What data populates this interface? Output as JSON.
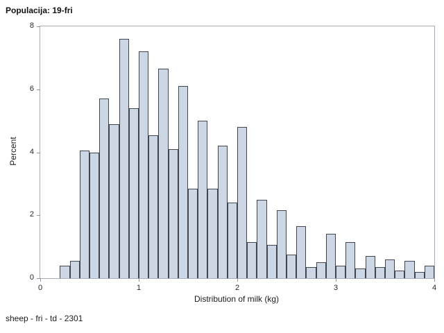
{
  "page": {
    "title": "Populacija: 19-fri",
    "footnote": "sheep - fri - td - 2301"
  },
  "chart_data": {
    "type": "bar",
    "subtype": "histogram",
    "title": "Populacija: 19-fri",
    "xlabel": "Distribution of milk (kg)",
    "ylabel": "Percent",
    "footnote": "sheep - fri - td - 2301",
    "bins": {
      "start": 0.2,
      "width": 0.1,
      "count": 38
    },
    "x": [
      0.2,
      0.3,
      0.4,
      0.5,
      0.6,
      0.7,
      0.8,
      0.9,
      1.0,
      1.1,
      1.2,
      1.3,
      1.4,
      1.5,
      1.6,
      1.7,
      1.8,
      1.9,
      2.0,
      2.1,
      2.2,
      2.3,
      2.4,
      2.5,
      2.6,
      2.7,
      2.8,
      2.9,
      3.0,
      3.1,
      3.2,
      3.3,
      3.4,
      3.5,
      3.6,
      3.7,
      3.8,
      3.9
    ],
    "values": [
      0.4,
      0.55,
      4.05,
      4.0,
      5.7,
      4.9,
      7.6,
      5.4,
      7.2,
      4.55,
      6.65,
      4.1,
      6.1,
      2.85,
      5.0,
      2.85,
      4.2,
      2.4,
      4.8,
      1.15,
      2.5,
      1.05,
      2.15,
      0.75,
      1.65,
      0.35,
      0.5,
      1.4,
      0.4,
      1.15,
      0.3,
      0.7,
      0.35,
      0.6,
      0.25,
      0.55,
      0.2,
      0.4
    ],
    "xlim": [
      0,
      4
    ],
    "ylim": [
      0,
      8
    ],
    "xticks": [
      0,
      1,
      2,
      3,
      4
    ],
    "yticks": [
      0,
      2,
      4,
      6,
      8
    ],
    "grid": false,
    "legend": false,
    "colors": {
      "bar_fill": "#ccd6e4",
      "bar_border": "#3f444d",
      "frame": "#a7adb5",
      "tick": "#8f959c",
      "text": "#1c1c1c"
    }
  }
}
